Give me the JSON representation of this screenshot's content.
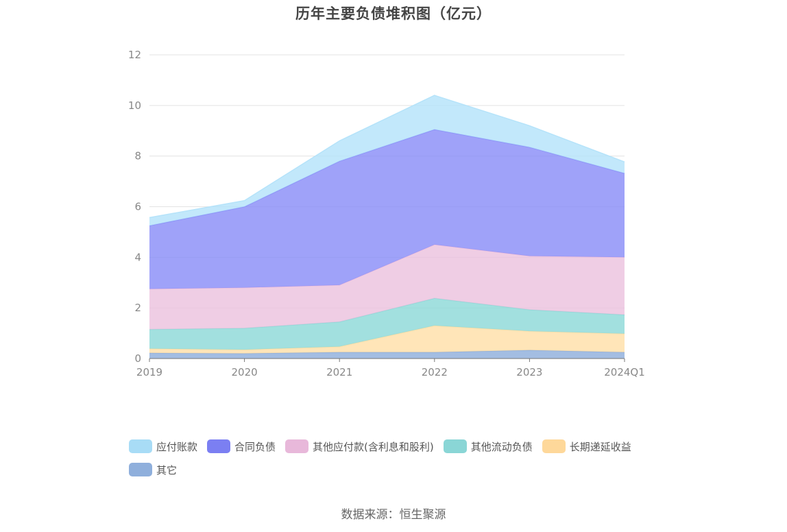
{
  "chart_data": {
    "type": "area",
    "stacked": true,
    "title": "历年主要负债堆积图（亿元）",
    "categories": [
      "2019",
      "2020",
      "2021",
      "2022",
      "2023",
      "2024Q1"
    ],
    "ylim": [
      0,
      12
    ],
    "yticks": [
      0,
      2,
      4,
      6,
      8,
      10,
      12
    ],
    "grid": true,
    "legend_position": "bottom",
    "series": [
      {
        "name": "其它",
        "color": "#8fafdc",
        "values": [
          0.22,
          0.2,
          0.25,
          0.25,
          0.33,
          0.25
        ]
      },
      {
        "name": "长期递延收益",
        "color": "#ffdfa8",
        "values": [
          0.17,
          0.15,
          0.22,
          1.05,
          0.75,
          0.73
        ]
      },
      {
        "name": "其他流动负债",
        "color": "#8ed9d8",
        "values": [
          0.76,
          0.85,
          0.98,
          1.08,
          0.85,
          0.75
        ]
      },
      {
        "name": "其他应付款(含利息和股利)",
        "color": "#ecc2de",
        "values": [
          1.6,
          1.6,
          1.45,
          2.12,
          2.12,
          2.27
        ]
      },
      {
        "name": "合同负债",
        "color": "#8a8ef8",
        "values": [
          2.5,
          3.2,
          4.9,
          4.55,
          4.3,
          3.32
        ]
      },
      {
        "name": "应付账款",
        "color": "#b5e3fa",
        "values": [
          0.32,
          0.24,
          0.8,
          1.35,
          0.85,
          0.45
        ]
      }
    ]
  },
  "legend_swatch_colors": [
    "#a8dcf6",
    "#7b7ff2",
    "#e8b8da",
    "#8ad6d6",
    "#fed89a",
    "#8fafdc"
  ],
  "source": "数据来源：恒生聚源"
}
